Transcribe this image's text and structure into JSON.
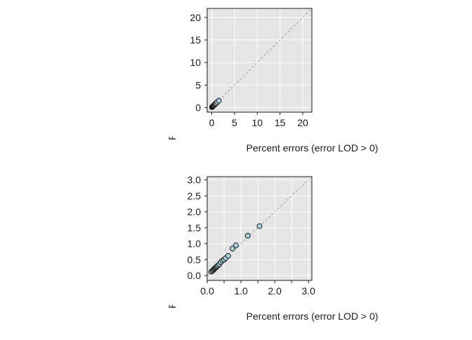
{
  "chart_data": [
    {
      "type": "scatter",
      "xlabel": "Percent errors (error LOD > 0)",
      "ylabel": "Percent errors (obs vs predic",
      "xlim": [
        -1,
        22
      ],
      "ylim": [
        -1,
        22
      ],
      "x_ticks": [
        0,
        5,
        10,
        15,
        20
      ],
      "y_ticks": [
        0,
        5,
        10,
        15,
        20
      ],
      "x_tick_labels": [
        "0",
        "5",
        "10",
        "15",
        "20"
      ],
      "y_tick_labels": [
        "0",
        "5",
        "10",
        "15",
        "20"
      ],
      "grid": true,
      "reference_line": "y = x",
      "point_color": "#a9d3de",
      "points": [
        {
          "x": 0.05,
          "y": 0.1
        },
        {
          "x": 0.1,
          "y": 0.15
        },
        {
          "x": 0.15,
          "y": 0.2
        },
        {
          "x": 0.2,
          "y": 0.25
        },
        {
          "x": 0.25,
          "y": 0.3
        },
        {
          "x": 0.3,
          "y": 0.35
        },
        {
          "x": 0.4,
          "y": 0.45
        },
        {
          "x": 0.5,
          "y": 0.55
        },
        {
          "x": 0.6,
          "y": 0.6
        },
        {
          "x": 0.7,
          "y": 0.8
        },
        {
          "x": 0.85,
          "y": 0.9
        },
        {
          "x": 0.95,
          "y": 0.95
        },
        {
          "x": 1.2,
          "y": 1.25
        },
        {
          "x": 1.55,
          "y": 1.55
        }
      ]
    },
    {
      "type": "scatter",
      "xlabel": "Percent errors (error LOD > 0)",
      "ylabel": "Percent errors (obs vs predic",
      "xlim": [
        0,
        3.1
      ],
      "ylim": [
        -0.15,
        3.1
      ],
      "x_ticks": [
        0,
        0.5,
        1,
        1.5,
        2,
        2.5,
        3
      ],
      "y_ticks": [
        0,
        0.5,
        1,
        1.5,
        2,
        2.5,
        3
      ],
      "x_tick_labels": [
        "0.0",
        "",
        "1.0",
        "",
        "2.0",
        "",
        "3.0"
      ],
      "y_tick_labels": [
        "0.0",
        "0.5",
        "1.0",
        "1.5",
        "2.0",
        "2.5",
        "3.0"
      ],
      "grid": true,
      "reference_line": "y = x",
      "point_color": "#a9d3de",
      "points": [
        {
          "x": 0.12,
          "y": 0.12
        },
        {
          "x": 0.15,
          "y": 0.15
        },
        {
          "x": 0.18,
          "y": 0.17
        },
        {
          "x": 0.2,
          "y": 0.2
        },
        {
          "x": 0.22,
          "y": 0.22
        },
        {
          "x": 0.24,
          "y": 0.24
        },
        {
          "x": 0.26,
          "y": 0.26
        },
        {
          "x": 0.28,
          "y": 0.28
        },
        {
          "x": 0.3,
          "y": 0.3
        },
        {
          "x": 0.33,
          "y": 0.33
        },
        {
          "x": 0.36,
          "y": 0.36
        },
        {
          "x": 0.4,
          "y": 0.42
        },
        {
          "x": 0.45,
          "y": 0.47
        },
        {
          "x": 0.5,
          "y": 0.5
        },
        {
          "x": 0.55,
          "y": 0.55
        },
        {
          "x": 0.62,
          "y": 0.62
        },
        {
          "x": 0.75,
          "y": 0.85
        },
        {
          "x": 0.85,
          "y": 0.95
        },
        {
          "x": 1.2,
          "y": 1.25
        },
        {
          "x": 1.55,
          "y": 1.55
        }
      ]
    }
  ]
}
